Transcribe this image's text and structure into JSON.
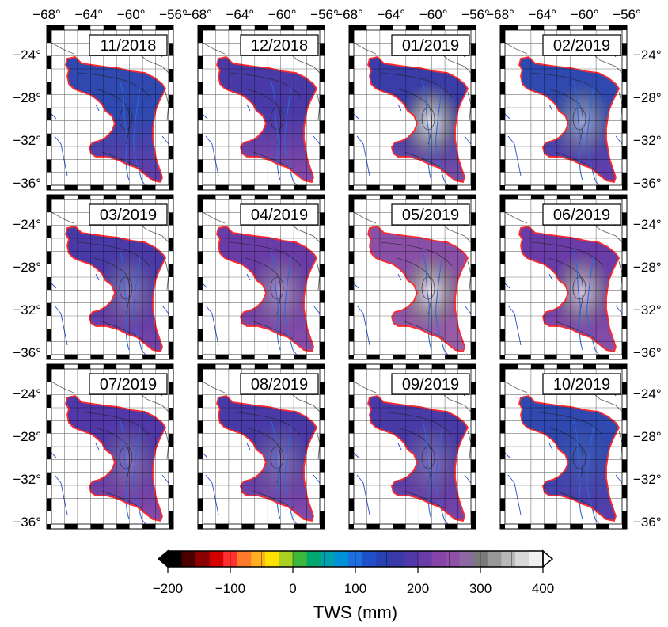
{
  "lon_top_labels": [
    "−68°",
    "−64°",
    "−60°",
    "−56°"
  ],
  "lat_left_labels": [
    "−24°",
    "−28°",
    "−32°",
    "−36°"
  ],
  "lat_right_labels": [
    "−24°",
    "−28°",
    "−32°",
    "−36°"
  ],
  "colorbar": {
    "ticks": [
      "−200",
      "−100",
      "0",
      "100",
      "200",
      "300",
      "400"
    ],
    "label": "TWS (mm)",
    "colors": [
      "#000000",
      "#4a0000",
      "#8b0000",
      "#d40000",
      "#ff3030",
      "#ff7a2a",
      "#ffb020",
      "#ffe000",
      "#a8d020",
      "#3cb83c",
      "#00a870",
      "#00a0b0",
      "#0090d8",
      "#1e6ee0",
      "#2050c8",
      "#2840b0",
      "#3a3aa8",
      "#5038a8",
      "#6a3ca8",
      "#8444a8",
      "#9050a8",
      "#8a6aa0",
      "#7a7a7a",
      "#989898",
      "#b8b8b8",
      "#d8d8d8",
      "#f0f0f0"
    ]
  },
  "panels": [
    {
      "date": "11/2018"
    },
    {
      "date": "12/2018"
    },
    {
      "date": "01/2019"
    },
    {
      "date": "02/2019"
    },
    {
      "date": "03/2019"
    },
    {
      "date": "04/2019"
    },
    {
      "date": "05/2019"
    },
    {
      "date": "06/2019"
    },
    {
      "date": "07/2019"
    },
    {
      "date": "08/2019"
    },
    {
      "date": "09/2019"
    },
    {
      "date": "10/2019"
    }
  ],
  "panel_styles": [
    {
      "base": "#2f49b0",
      "south": "#6a3ca8",
      "gray": 0.0
    },
    {
      "base": "#4a3aa8",
      "south": "#8a4aa8",
      "gray": 0.0
    },
    {
      "base": "#3a3ca8",
      "south": "#7a50a8",
      "gray": 0.9
    },
    {
      "base": "#2f49b0",
      "south": "#6a3ca8",
      "gray": 0.55
    },
    {
      "base": "#4a3aa8",
      "south": "#7a44a8",
      "gray": 0.35
    },
    {
      "base": "#6a3ca8",
      "south": "#8a50a8",
      "gray": 0.45
    },
    {
      "base": "#8a50a8",
      "south": "#9a60a8",
      "gray": 0.9
    },
    {
      "base": "#6a3ca8",
      "south": "#8a50a8",
      "gray": 0.75
    },
    {
      "base": "#5038a8",
      "south": "#8a4aa8",
      "gray": 0.3
    },
    {
      "base": "#4a3aa8",
      "south": "#8a4aa8",
      "gray": 0.3
    },
    {
      "base": "#4a3aa8",
      "south": "#7a44a8",
      "gray": 0.3
    },
    {
      "base": "#2f49b0",
      "south": "#5a3ca8",
      "gray": 0.1
    }
  ]
}
